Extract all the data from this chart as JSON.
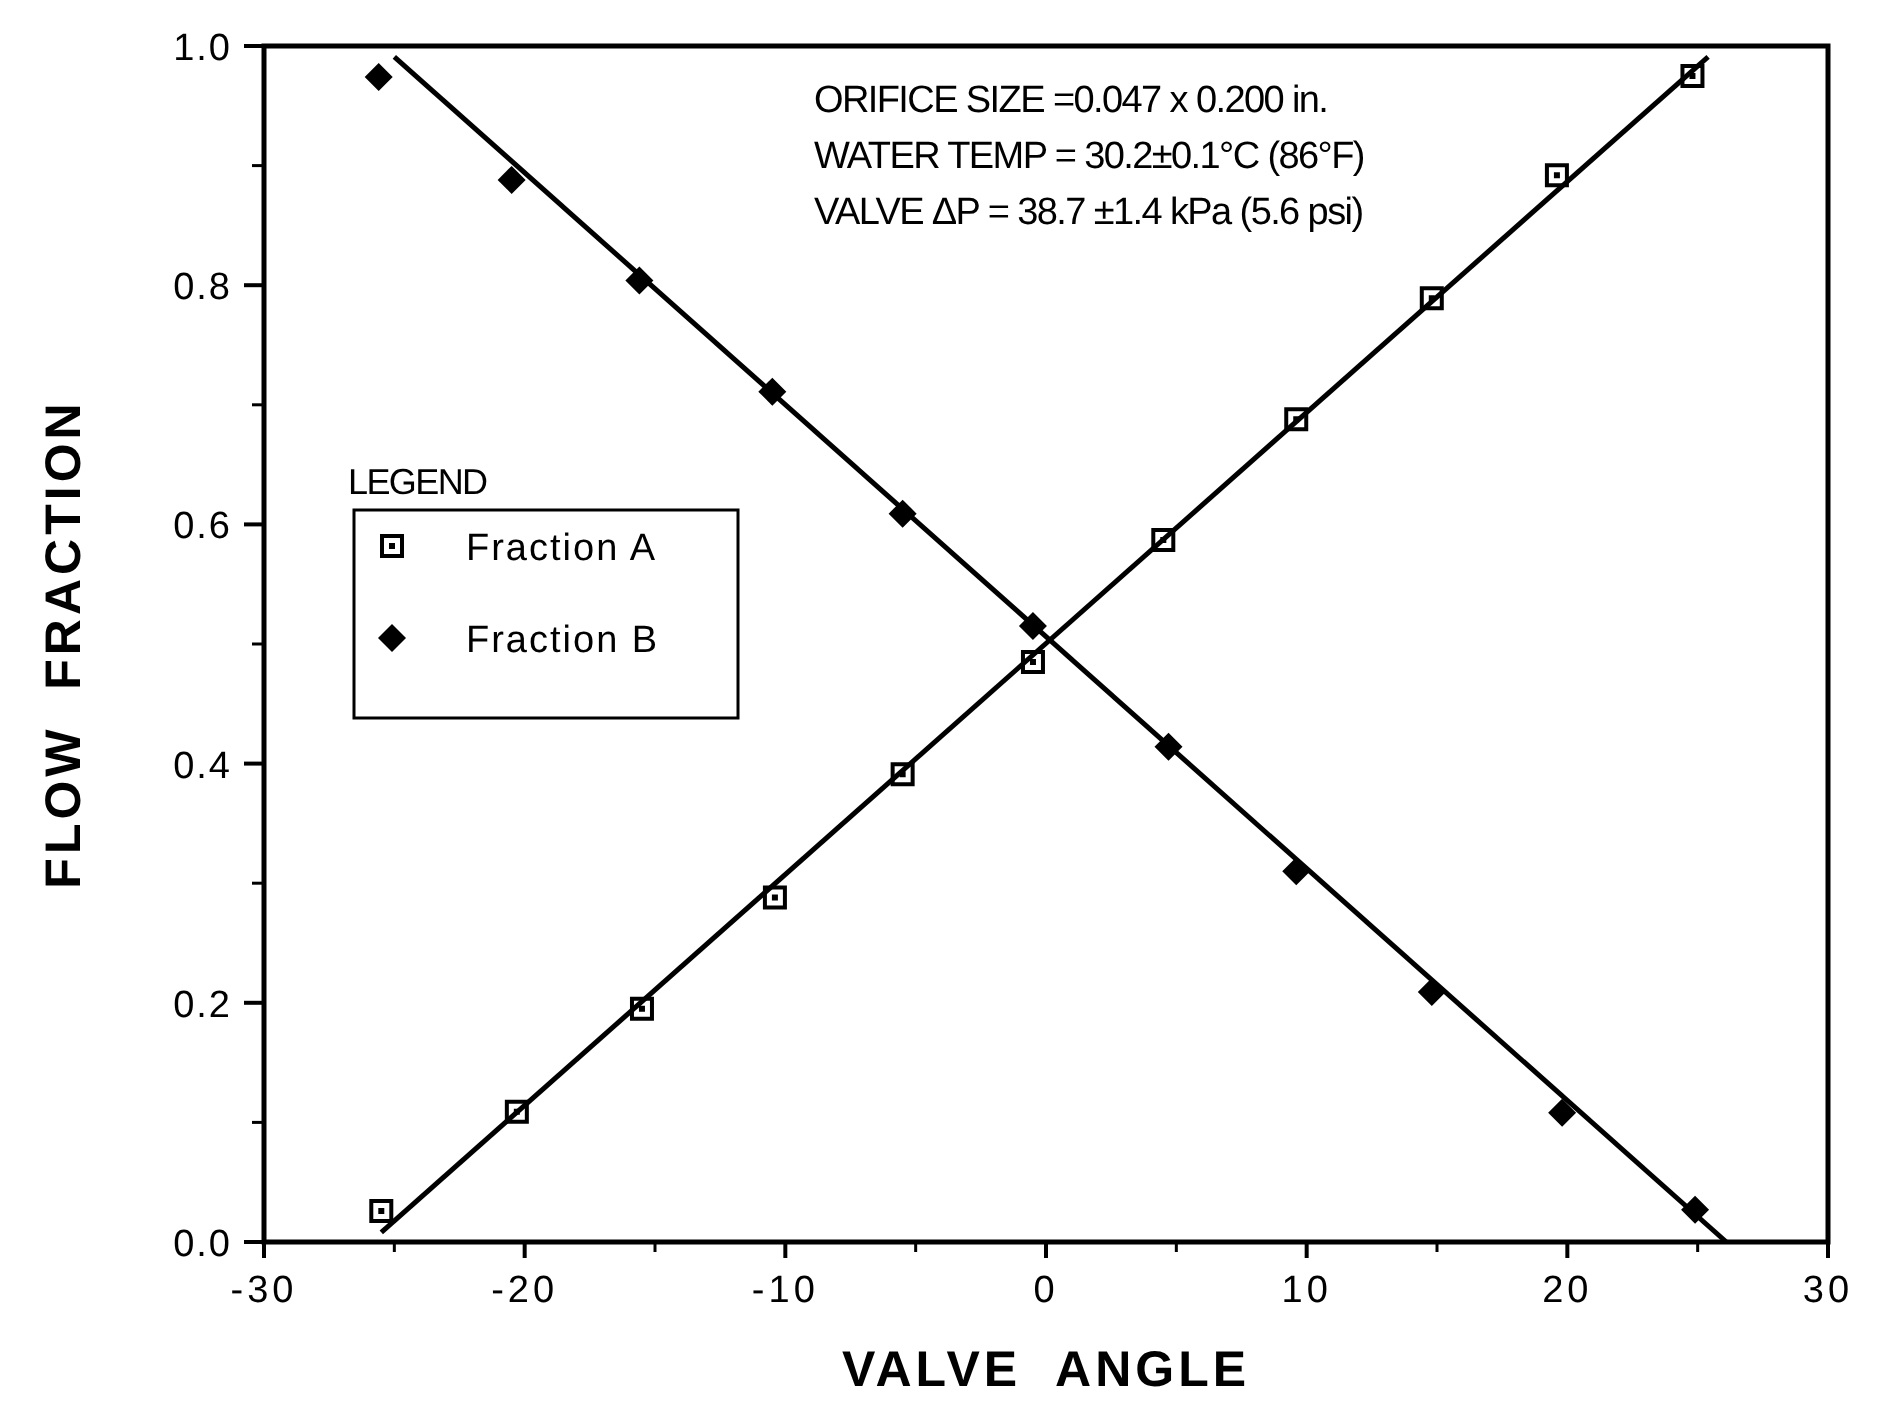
{
  "chart_data": {
    "type": "scatter",
    "xlabel": "VALVE  ANGLE",
    "ylabel": "FLOW  FRACTION",
    "legend_title": "LEGEND",
    "annotations": [
      "ORIFICE SIZE =0.047 x 0.200 in.",
      "WATER TEMP = 30.2±0.1°C (86°F)",
      "VALVE ΔP = 38.7 ±1.4 kPa (5.6 psi)"
    ],
    "xlim": [
      -30,
      30
    ],
    "xticks": [
      -30,
      -20,
      -10,
      0,
      10,
      20,
      30
    ],
    "ylim": [
      0,
      1
    ],
    "yticks": [
      {
        "value": 0,
        "label": "0.0"
      },
      {
        "value": 0.2,
        "label": "0.2"
      },
      {
        "value": 0.4,
        "label": "0.4"
      },
      {
        "value": 0.6,
        "label": "0.6"
      },
      {
        "value": 0.8,
        "label": "0.8"
      },
      {
        "value": 1,
        "label": "1.0"
      }
    ],
    "grid": false,
    "legend": "left",
    "series": [
      {
        "name": "Fraction A",
        "marker": "square",
        "color": "#000000",
        "x": [
          -25.5,
          -20.3,
          -15.5,
          -10.4,
          -5.5,
          -0.5,
          4.5,
          9.6,
          14.8,
          19.6,
          24.8
        ],
        "values": [
          0.026,
          0.109,
          0.195,
          0.288,
          0.391,
          0.485,
          0.587,
          0.688,
          0.789,
          0.892,
          0.975
        ]
      },
      {
        "name": "Fraction B",
        "marker": "diamond",
        "color": "#000000",
        "x": [
          -25.6,
          -20.5,
          -15.6,
          -10.5,
          -5.5,
          -0.5,
          4.7,
          9.6,
          14.8,
          19.8,
          24.9
        ],
        "values": [
          0.974,
          0.888,
          0.804,
          0.711,
          0.609,
          0.515,
          0.414,
          0.31,
          0.209,
          0.108,
          0.027
        ]
      },
      {
        "type": "line",
        "color": "#000000",
        "marker": "none",
        "line_style": "solid",
        "x": [
          -25.5,
          25.4
        ],
        "values": [
          0.008,
          0.991
        ]
      },
      {
        "type": "line",
        "color": "#000000",
        "marker": "none",
        "line_style": "solid",
        "x": [
          -25.0,
          26.1
        ],
        "values": [
          0.991,
          0
        ]
      }
    ]
  }
}
